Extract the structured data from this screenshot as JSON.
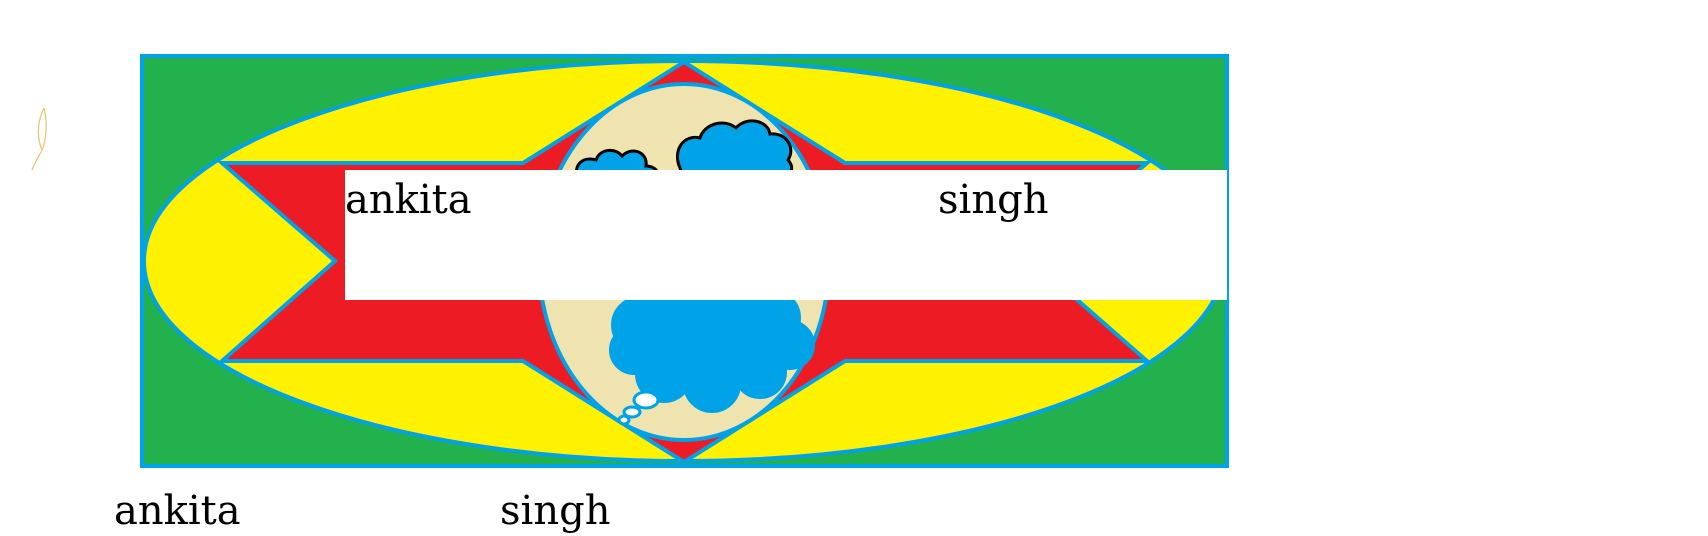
{
  "colors": {
    "background": "#ffffff",
    "green": "#22b14c",
    "yellow": "#fff200",
    "red": "#ed1c24",
    "blue": "#00a2e8",
    "cream": "#efe4b0",
    "white": "#ffffff",
    "text": "#000000",
    "scribble": "#e8c36a"
  },
  "band_text": {
    "first": "ankita",
    "last": "singh"
  },
  "bottom_text": {
    "first": "ankita",
    "last": "singh"
  }
}
